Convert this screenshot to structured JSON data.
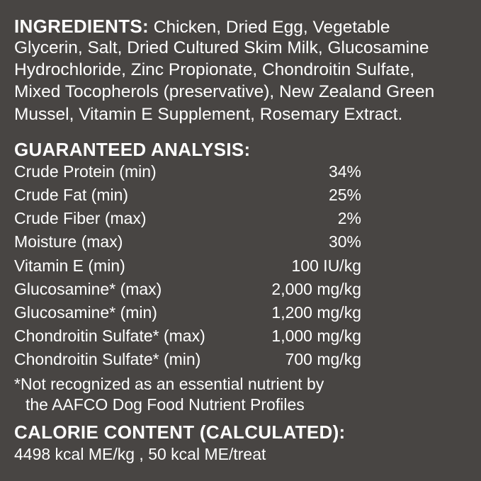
{
  "ingredients": {
    "heading": "INGREDIENTS:",
    "lines": [
      "Chicken, Dried Egg, Vegetable",
      "Glycerin, Salt, Dried Cultured Skim Milk, Glucosamine",
      "Hydrochloride, Zinc Propionate, Chondroitin Sulfate,",
      "Mixed Tocopherols (preservative), New Zealand Green",
      "Mussel, Vitamin E Supplement, Rosemary Extract."
    ]
  },
  "analysis": {
    "heading": "GUARANTEED ANALYSIS:",
    "rows": [
      {
        "label": "Crude Protein (min)",
        "value": "34%"
      },
      {
        "label": "Crude Fat (min)",
        "value": "25%"
      },
      {
        "label": "Crude Fiber (max)",
        "value": "2%"
      },
      {
        "label": "Moisture (max)",
        "value": "30%"
      },
      {
        "label": "Vitamin E (min)",
        "value": "100 IU/kg"
      },
      {
        "label": "Glucosamine* (max)",
        "value": "2,000 mg/kg"
      },
      {
        "label": "Glucosamine* (min)",
        "value": "1,200 mg/kg"
      },
      {
        "label": "Chondroitin Sulfate* (max)",
        "value": "1,000 mg/kg"
      },
      {
        "label": "Chondroitin Sulfate* (min)",
        "value": "700 mg/kg"
      }
    ],
    "footnote": [
      "*Not recognized as an essential nutrient by",
      "the AAFCO Dog Food Nutrient Profiles"
    ]
  },
  "calorie": {
    "heading": "CALORIE CONTENT (CALCULATED):",
    "value": "4498 kcal ME/kg , 50 kcal ME/treat"
  },
  "colors": {
    "background": "#484543",
    "text": "#ffffff"
  }
}
